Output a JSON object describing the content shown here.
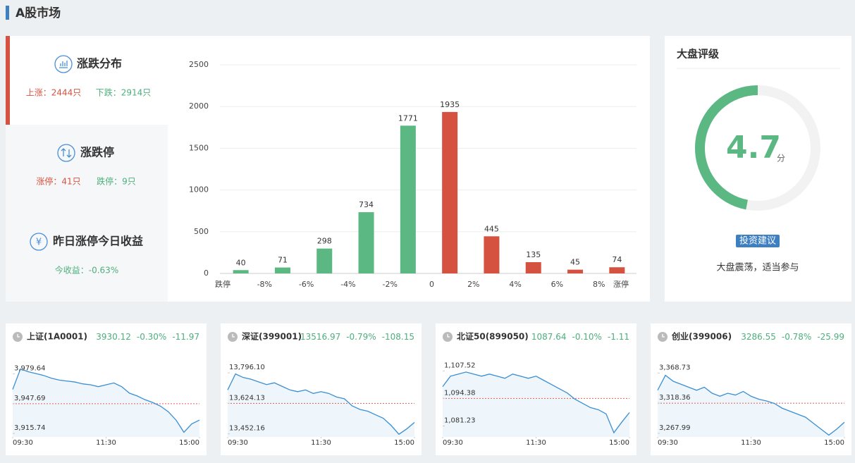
{
  "header": {
    "title": "A股市场"
  },
  "sidebar": [
    {
      "title": "涨跌分布",
      "items": [
        "上涨：2444只",
        "下跌：2914只"
      ]
    },
    {
      "title": "涨跌停",
      "items": [
        "涨停：41只",
        "跌停：9只"
      ]
    },
    {
      "title": "昨日涨停今日收益",
      "items": [
        "今收益：-0.63%"
      ]
    }
  ],
  "chart_data": [
    {
      "type": "bar",
      "x_labels": [
        "跌停",
        "-8%",
        "-6%",
        "-4%",
        "-2%",
        "0",
        "2%",
        "4%",
        "6%",
        "8%",
        "涨停"
      ],
      "values": [
        40,
        71,
        298,
        734,
        1771,
        1935,
        445,
        135,
        45,
        74
      ],
      "colors": [
        "#5bb882",
        "#5bb882",
        "#5bb882",
        "#5bb882",
        "#5bb882",
        "#d65240",
        "#d65240",
        "#d65240",
        "#d65240",
        "#d65240"
      ],
      "ylim": [
        0,
        2500
      ],
      "yticks": [
        0,
        500,
        1000,
        1500,
        2000,
        2500
      ],
      "grid": true
    },
    {
      "type": "line",
      "title": "上证(1A0001)",
      "price": "3930.12",
      "change_pct": "-0.30%",
      "change": "-11.97",
      "values": [
        3963,
        3985,
        3982,
        3980,
        3978,
        3975,
        3973,
        3972,
        3971,
        3969,
        3968,
        3966,
        3968,
        3970,
        3966,
        3959,
        3956,
        3952,
        3949,
        3945,
        3939,
        3930,
        3917,
        3926,
        3930.12
      ],
      "xlim": [
        0,
        24
      ],
      "xticks": [
        {
          "value": 0,
          "label": "09:30"
        },
        {
          "value": 12,
          "label": "11:30"
        },
        {
          "value": 24,
          "label": "15:00"
        }
      ],
      "ylim": [
        3912,
        3993
      ],
      "yticks": [
        {
          "value": 3979.64,
          "label": "3,979.64"
        },
        {
          "value": 3947.69,
          "label": "3,947.69"
        },
        {
          "value": 3915.74,
          "label": "3,915.74"
        }
      ],
      "reference_line": 3947.69,
      "color": "#3a8ed4"
    },
    {
      "type": "line",
      "title": "深证(399001)",
      "price": "13516.97",
      "change_pct": "-0.79%",
      "change": "-108.15",
      "values": [
        13700,
        13790,
        13770,
        13760,
        13745,
        13730,
        13740,
        13720,
        13700,
        13690,
        13700,
        13680,
        13690,
        13680,
        13660,
        13650,
        13610,
        13590,
        13580,
        13560,
        13540,
        13500,
        13450,
        13480,
        13516.97
      ],
      "xlim": [
        0,
        24
      ],
      "xticks": [
        {
          "value": 0,
          "label": "09:30"
        },
        {
          "value": 12,
          "label": "11:30"
        },
        {
          "value": 24,
          "label": "15:00"
        }
      ],
      "ylim": [
        13435,
        13860
      ],
      "yticks": [
        {
          "value": 13796.1,
          "label": "13,796.10"
        },
        {
          "value": 13624.13,
          "label": "13,624.13"
        },
        {
          "value": 13452.16,
          "label": "13,452.16"
        }
      ],
      "reference_line": 13624.13,
      "color": "#3a8ed4"
    },
    {
      "type": "line",
      "title": "北证50(899050)",
      "price": "1087.64",
      "change_pct": "-0.10%",
      "change": "-1.11",
      "values": [
        1100,
        1105,
        1106,
        1107,
        1106,
        1105,
        1106,
        1105,
        1104,
        1106,
        1105,
        1104,
        1105,
        1103,
        1101,
        1099,
        1097,
        1094,
        1092,
        1090,
        1089,
        1087,
        1078,
        1083,
        1087.64
      ],
      "xlim": [
        0,
        24
      ],
      "xticks": [
        {
          "value": 0,
          "label": "09:30"
        },
        {
          "value": 12,
          "label": "11:30"
        },
        {
          "value": 24,
          "label": "15:00"
        }
      ],
      "ylim": [
        1076,
        1112
      ],
      "yticks": [
        {
          "value": 1107.52,
          "label": "1,107.52"
        },
        {
          "value": 1094.38,
          "label": "1,094.38"
        },
        {
          "value": 1081.23,
          "label": "1,081.23"
        }
      ],
      "reference_line": 1094.38,
      "color": "#3a8ed4"
    },
    {
      "type": "line",
      "title": "创业(399006)",
      "price": "3286.55",
      "change_pct": "-0.78%",
      "change": "-25.99",
      "values": [
        3340,
        3365,
        3355,
        3350,
        3345,
        3340,
        3345,
        3335,
        3330,
        3335,
        3332,
        3338,
        3330,
        3325,
        3322,
        3318,
        3310,
        3305,
        3300,
        3295,
        3285,
        3275,
        3265,
        3275,
        3286.55
      ],
      "xlim": [
        0,
        24
      ],
      "xticks": [
        {
          "value": 0,
          "label": "09:30"
        },
        {
          "value": 12,
          "label": "11:30"
        },
        {
          "value": 24,
          "label": "15:00"
        }
      ],
      "ylim": [
        3262,
        3388
      ],
      "yticks": [
        {
          "value": 3368.73,
          "label": "3,368.73"
        },
        {
          "value": 3318.36,
          "label": "3,318.36"
        },
        {
          "value": 3267.99,
          "label": "3,267.99"
        }
      ],
      "reference_line": 3318.36,
      "color": "#3a8ed4"
    }
  ],
  "rating": {
    "title": "大盘评级",
    "score": 4.7,
    "max": 10,
    "unit": "分",
    "button": "投资建议",
    "advice": "大盘震荡，适当参与",
    "color": "#5bb882"
  }
}
